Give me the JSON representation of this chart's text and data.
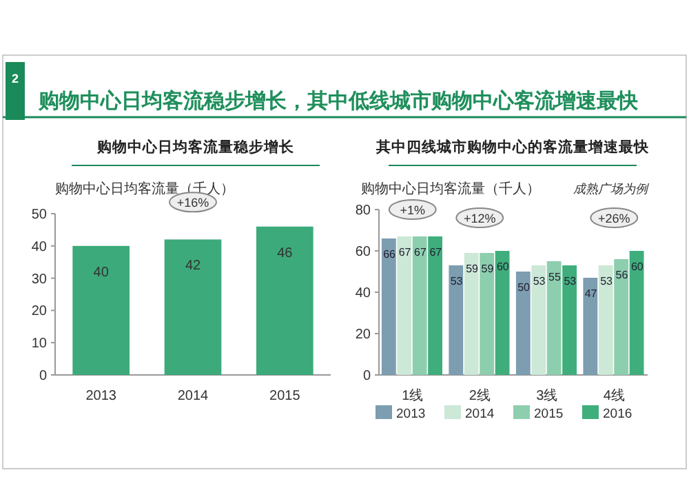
{
  "chart_data": [
    {
      "type": "bar",
      "title": "购物中心日均客流稳步增长，其中低线城市购物中心客流增速最快",
      "subtitle": "购物中心日均客流量稳步增长",
      "ylabel": "购物中心日均客流量（千人）",
      "categories": [
        "2013",
        "2014",
        "2015"
      ],
      "values": [
        40,
        42,
        46
      ],
      "color": "#3caa7a",
      "ylim": [
        0,
        50
      ],
      "yticks": [
        0,
        10,
        20,
        30,
        40,
        50
      ],
      "data_labels": true,
      "grid": false,
      "legend": false,
      "annotations": [
        "2",
        "+16%"
      ]
    },
    {
      "type": "bar",
      "title": "其中四线城市购物中心的客流量增速最快",
      "ylabel": "购物中心日均客流量（千人）",
      "categories": [
        "1线",
        "2线",
        "3线",
        "4线"
      ],
      "series": [
        {
          "name": "2013",
          "color": "#7d9db0",
          "values": [
            66,
            53,
            50,
            47
          ]
        },
        {
          "name": "2014",
          "color": "#cce8d6",
          "values": [
            67,
            59,
            53,
            53
          ]
        },
        {
          "name": "2015",
          "color": "#8dceae",
          "values": [
            67,
            59,
            55,
            56
          ]
        },
        {
          "name": "2016",
          "color": "#3fae7c",
          "values": [
            67,
            60,
            53,
            60
          ]
        }
      ],
      "ylim": [
        0,
        80
      ],
      "yticks": [
        0,
        20,
        40,
        60,
        80
      ],
      "data_labels": true,
      "grid": false,
      "legend": "bottom",
      "annotations": [
        "成熟广场为例",
        "+1%",
        "+12%",
        "+26%"
      ]
    }
  ]
}
